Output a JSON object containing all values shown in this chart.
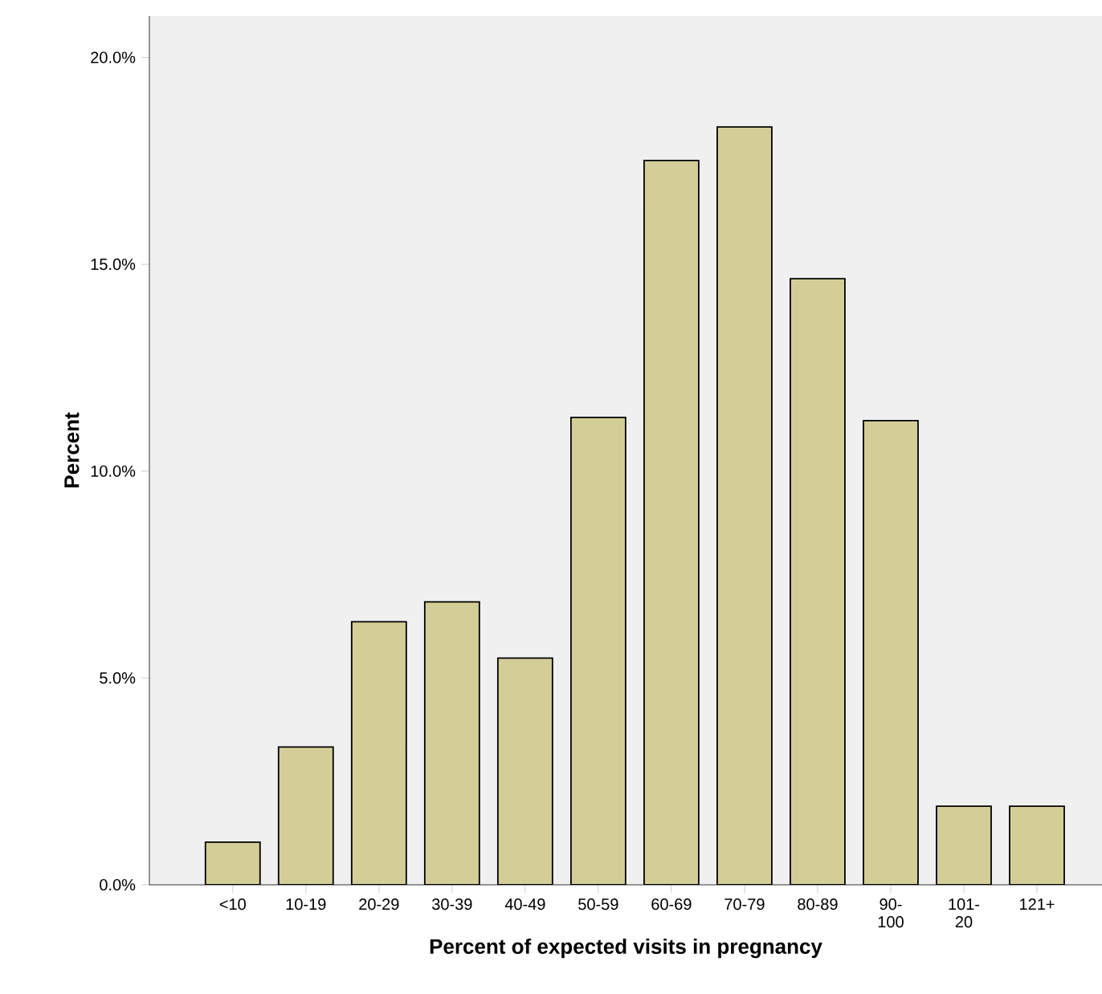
{
  "chart_data": {
    "type": "bar",
    "xlabel": "Percent of expected visits in pregnancy",
    "ylabel": "Percent",
    "categories": [
      "<10",
      "10-19",
      "20-29",
      "30-39",
      "40-49",
      "50-59",
      "60-69",
      "70-79",
      "80-89",
      "90-100",
      "101-20",
      "121+"
    ],
    "values": [
      1.03,
      3.33,
      6.36,
      6.84,
      5.48,
      11.3,
      17.51,
      18.32,
      14.65,
      11.22,
      1.9,
      1.9
    ],
    "color": "#d3ce97",
    "ylim": [
      0,
      21
    ],
    "yticks": [
      {
        "value": 0,
        "label": "0.0%"
      },
      {
        "value": 5,
        "label": "5.0%"
      },
      {
        "value": 10,
        "label": "10.0%"
      },
      {
        "value": 15,
        "label": "15.0%"
      },
      {
        "value": 20,
        "label": "20.0%"
      }
    ]
  }
}
